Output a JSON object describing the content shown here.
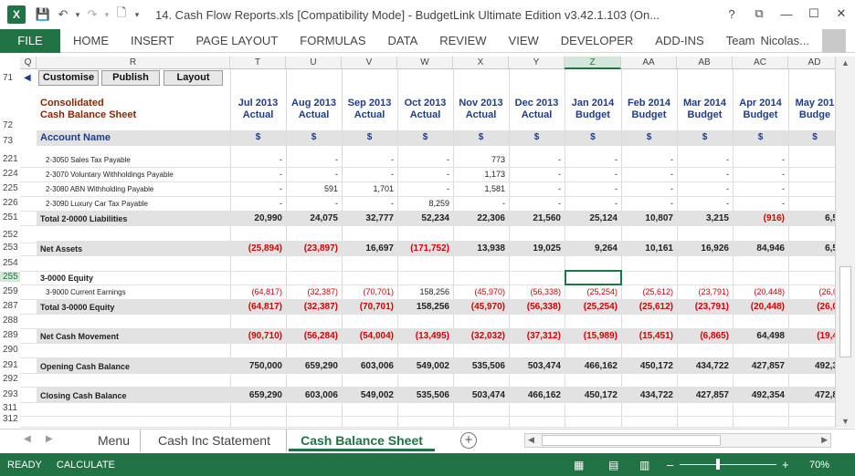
{
  "window": {
    "title": "14. Cash Flow Reports.xls  [Compatibility Mode] - BudgetLink Ultimate Edition v3.42.1.103 (On...",
    "help": "?",
    "close": "✕"
  },
  "ribbon": {
    "file": "FILE",
    "tabs": [
      "HOME",
      "INSERT",
      "PAGE LAYOUT",
      "FORMULAS",
      "DATA",
      "REVIEW",
      "VIEW",
      "DEVELOPER",
      "ADD-INS",
      "Team"
    ],
    "user": "Nicolas..."
  },
  "columns": [
    "Q",
    "R",
    "T",
    "U",
    "V",
    "W",
    "X",
    "Y",
    "Z",
    "AA",
    "AB",
    "AC",
    "AD"
  ],
  "buttons": {
    "customise": "Customise",
    "publish": "Publish",
    "layout": "Layout"
  },
  "report": {
    "title1": "Consolidated",
    "title2": "Cash Balance Sheet",
    "account_hdr": "Account Name",
    "dollar": "$"
  },
  "months": [
    {
      "m": "Jul 2013",
      "t": "Actual"
    },
    {
      "m": "Aug 2013",
      "t": "Actual"
    },
    {
      "m": "Sep 2013",
      "t": "Actual"
    },
    {
      "m": "Oct 2013",
      "t": "Actual"
    },
    {
      "m": "Nov 2013",
      "t": "Actual"
    },
    {
      "m": "Dec 2013",
      "t": "Actual"
    },
    {
      "m": "Jan 2014",
      "t": "Budget"
    },
    {
      "m": "Feb 2014",
      "t": "Budget"
    },
    {
      "m": "Mar 2014",
      "t": "Budget"
    },
    {
      "m": "Apr 2014",
      "t": "Budget"
    },
    {
      "m": "May 201",
      "t": "Budge"
    }
  ],
  "rows": [
    {
      "num": "221",
      "label": "2-3050 Sales Tax Payable",
      "style": "acct",
      "vals": [
        "-",
        "-",
        "-",
        "-",
        "773",
        "-",
        "-",
        "-",
        "-",
        "-",
        ""
      ]
    },
    {
      "num": "224",
      "label": "2-3070 Voluntary Withholdings Payable",
      "style": "acct",
      "vals": [
        "-",
        "-",
        "-",
        "-",
        "1,173",
        "-",
        "-",
        "-",
        "-",
        "-",
        ""
      ]
    },
    {
      "num": "225",
      "label": "2-3080 ABN Withholding Payable",
      "style": "acct",
      "vals": [
        "-",
        "591",
        "1,701",
        "-",
        "1,581",
        "-",
        "-",
        "-",
        "-",
        "-",
        ""
      ]
    },
    {
      "num": "226",
      "label": "2-3090 Luxury Car Tax Payable",
      "style": "acct",
      "vals": [
        "-",
        "-",
        "-",
        "8,259",
        "-",
        "-",
        "-",
        "-",
        "-",
        "-",
        ""
      ]
    },
    {
      "num": "251",
      "label": "Total 2-0000 Liabilities",
      "style": "total",
      "vals": [
        "20,990",
        "24,075",
        "32,777",
        "52,234",
        "22,306",
        "21,560",
        "25,124",
        "10,807",
        "3,215",
        "(916)",
        "6,5"
      ]
    },
    {
      "num": "252",
      "label": "",
      "style": "blank",
      "vals": []
    },
    {
      "num": "253",
      "label": "Net Assets",
      "style": "total",
      "vals": [
        "(25,894)",
        "(23,897)",
        "16,697",
        "(171,752)",
        "13,938",
        "19,025",
        "9,264",
        "10,161",
        "16,926",
        "84,946",
        "6,5"
      ]
    },
    {
      "num": "254",
      "label": "",
      "style": "blank",
      "vals": []
    },
    {
      "num": "255",
      "label": "3-0000 Equity",
      "style": "heading",
      "vals": []
    },
    {
      "num": "259",
      "label": "3-9000 Current Earnings",
      "style": "acct",
      "vals": [
        "(64,817)",
        "(32,387)",
        "(70,701)",
        "158,256",
        "(45,970)",
        "(56,338)",
        "(25,254)",
        "(25,612)",
        "(23,791)",
        "(20,448)",
        "(26,0"
      ]
    },
    {
      "num": "287",
      "label": "Total 3-0000 Equity",
      "style": "total",
      "vals": [
        "(64,817)",
        "(32,387)",
        "(70,701)",
        "158,256",
        "(45,970)",
        "(56,338)",
        "(25,254)",
        "(25,612)",
        "(23,791)",
        "(20,448)",
        "(26,0"
      ]
    },
    {
      "num": "288",
      "label": "",
      "style": "blank",
      "vals": []
    },
    {
      "num": "289",
      "label": "Net Cash Movement",
      "style": "total",
      "vals": [
        "(90,710)",
        "(56,284)",
        "(54,004)",
        "(13,495)",
        "(32,032)",
        "(37,312)",
        "(15,989)",
        "(15,451)",
        "(6,865)",
        "64,498",
        "(19,4"
      ]
    },
    {
      "num": "290",
      "label": "",
      "style": "blank",
      "vals": []
    },
    {
      "num": "291",
      "label": "Opening Cash Balance",
      "style": "total",
      "vals": [
        "750,000",
        "659,290",
        "603,006",
        "549,002",
        "535,506",
        "503,474",
        "466,162",
        "450,172",
        "434,722",
        "427,857",
        "492,3"
      ]
    },
    {
      "num": "292",
      "label": "",
      "style": "blank",
      "vals": []
    },
    {
      "num": "293",
      "label": "Closing Cash Balance",
      "style": "total",
      "vals": [
        "659,290",
        "603,006",
        "549,002",
        "535,506",
        "503,474",
        "466,162",
        "450,172",
        "434,722",
        "427,857",
        "492,354",
        "472,8"
      ]
    },
    {
      "num": "311",
      "label": "",
      "style": "blank",
      "vals": []
    },
    {
      "num": "312",
      "label": "",
      "style": "blank",
      "vals": []
    }
  ],
  "topnums": {
    "r71": "71",
    "r72": "72",
    "r73": "73"
  },
  "sheets": [
    "Menu",
    "Cash Inc Statement",
    "Cash Balance Sheet"
  ],
  "status": {
    "ready": "READY",
    "calc": "CALCULATE",
    "zoom": "70%",
    "minus": "–",
    "plus": "+"
  }
}
